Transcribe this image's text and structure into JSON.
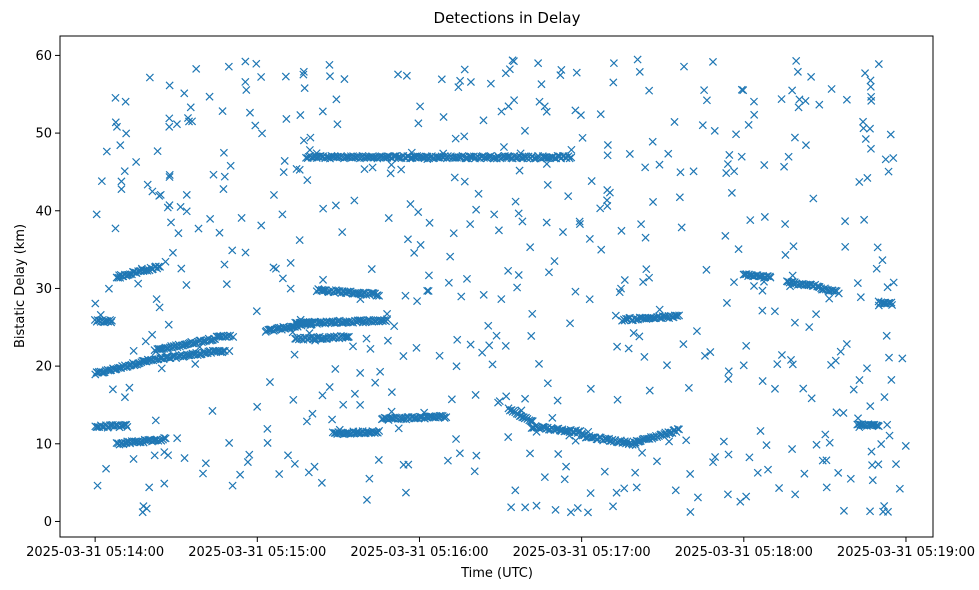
{
  "chart_data": {
    "type": "scatter",
    "title": "Detections in Delay",
    "xlabel": "Time (UTC)",
    "ylabel": "Bistatic Delay (km)",
    "marker": "x",
    "color": "#1f77b4",
    "grid": false,
    "x_tick_labels": [
      "2025-03-31 05:14:00",
      "2025-03-31 05:15:00",
      "2025-03-31 05:16:00",
      "2025-03-31 05:17:00",
      "2025-03-31 05:18:00",
      "2025-03-31 05:19:00"
    ],
    "y_tick_labels": [
      "0",
      "10",
      "20",
      "30",
      "40",
      "50",
      "60"
    ],
    "xlim": [
      "2025-03-31 05:13:47",
      "2025-03-31 05:19:10"
    ],
    "ylim": [
      -2,
      62.5
    ],
    "series": [
      {
        "tracks": [
          {
            "x": [
              "2025-03-31 05:14:00",
              "2025-03-31 05:14:18",
              "2025-03-31 05:14:36",
              "2025-03-31 05:14:48"
            ],
            "y": [
              19.0,
              20.6,
              21.5,
              22.0
            ]
          },
          {
            "x": [
              "2025-03-31 05:14:00",
              "2025-03-31 05:14:12"
            ],
            "y": [
              12.2,
              12.3
            ]
          },
          {
            "x": [
              "2025-03-31 05:14:00",
              "2025-03-31 05:14:06"
            ],
            "y": [
              25.8,
              25.8
            ]
          },
          {
            "x": [
              "2025-03-31 05:14:08",
              "2025-03-31 05:14:26"
            ],
            "y": [
              10.0,
              10.6
            ]
          },
          {
            "x": [
              "2025-03-31 05:14:08",
              "2025-03-31 05:14:24"
            ],
            "y": [
              31.5,
              32.8
            ]
          },
          {
            "x": [
              "2025-03-31 05:14:22",
              "2025-03-31 05:14:50"
            ],
            "y": [
              22.0,
              24.0
            ]
          },
          {
            "x": [
              "2025-03-31 05:15:03",
              "2025-03-31 05:15:20"
            ],
            "y": [
              24.5,
              25.5
            ]
          },
          {
            "x": [
              "2025-03-31 05:15:14",
              "2025-03-31 05:15:48"
            ],
            "y": [
              25.5,
              25.9
            ]
          },
          {
            "x": [
              "2025-03-31 05:15:14",
              "2025-03-31 05:15:34"
            ],
            "y": [
              23.5,
              23.8
            ]
          },
          {
            "x": [
              "2025-03-31 05:15:22",
              "2025-03-31 05:15:45"
            ],
            "y": [
              29.8,
              29.2
            ]
          },
          {
            "x": [
              "2025-03-31 05:15:18",
              "2025-03-31 05:16:56"
            ],
            "y": [
              46.9,
              46.9
            ]
          },
          {
            "x": [
              "2025-03-31 05:15:28",
              "2025-03-31 05:15:45"
            ],
            "y": [
              11.3,
              11.6
            ]
          },
          {
            "x": [
              "2025-03-31 05:15:46",
              "2025-03-31 05:16:10"
            ],
            "y": [
              13.2,
              13.5
            ]
          },
          {
            "x": [
              "2025-03-31 05:16:33",
              "2025-03-31 05:16:42"
            ],
            "y": [
              14.5,
              12.8
            ]
          },
          {
            "x": [
              "2025-03-31 05:16:42",
              "2025-03-31 05:17:00"
            ],
            "y": [
              12.2,
              11.5
            ]
          },
          {
            "x": [
              "2025-03-31 05:17:00",
              "2025-03-31 05:17:20"
            ],
            "y": [
              11.0,
              10.0
            ]
          },
          {
            "x": [
              "2025-03-31 05:17:20",
              "2025-03-31 05:17:36"
            ],
            "y": [
              10.2,
              11.8
            ]
          },
          {
            "x": [
              "2025-03-31 05:17:15",
              "2025-03-31 05:17:36"
            ],
            "y": [
              26.0,
              26.4
            ]
          },
          {
            "x": [
              "2025-03-31 05:18:00",
              "2025-03-31 05:18:10"
            ],
            "y": [
              31.8,
              31.4
            ]
          },
          {
            "x": [
              "2025-03-31 05:18:16",
              "2025-03-31 05:18:28"
            ],
            "y": [
              30.8,
              30.3
            ]
          },
          {
            "x": [
              "2025-03-31 05:18:28",
              "2025-03-31 05:18:35"
            ],
            "y": [
              30.0,
              29.5
            ]
          },
          {
            "x": [
              "2025-03-31 05:18:50",
              "2025-03-31 05:18:55"
            ],
            "y": [
              28.2,
              28.0
            ]
          },
          {
            "x": [
              "2025-03-31 05:18:42",
              "2025-03-31 05:18:50"
            ],
            "y": [
              12.4,
              12.4
            ]
          }
        ],
        "noise_points": 560
      }
    ]
  }
}
